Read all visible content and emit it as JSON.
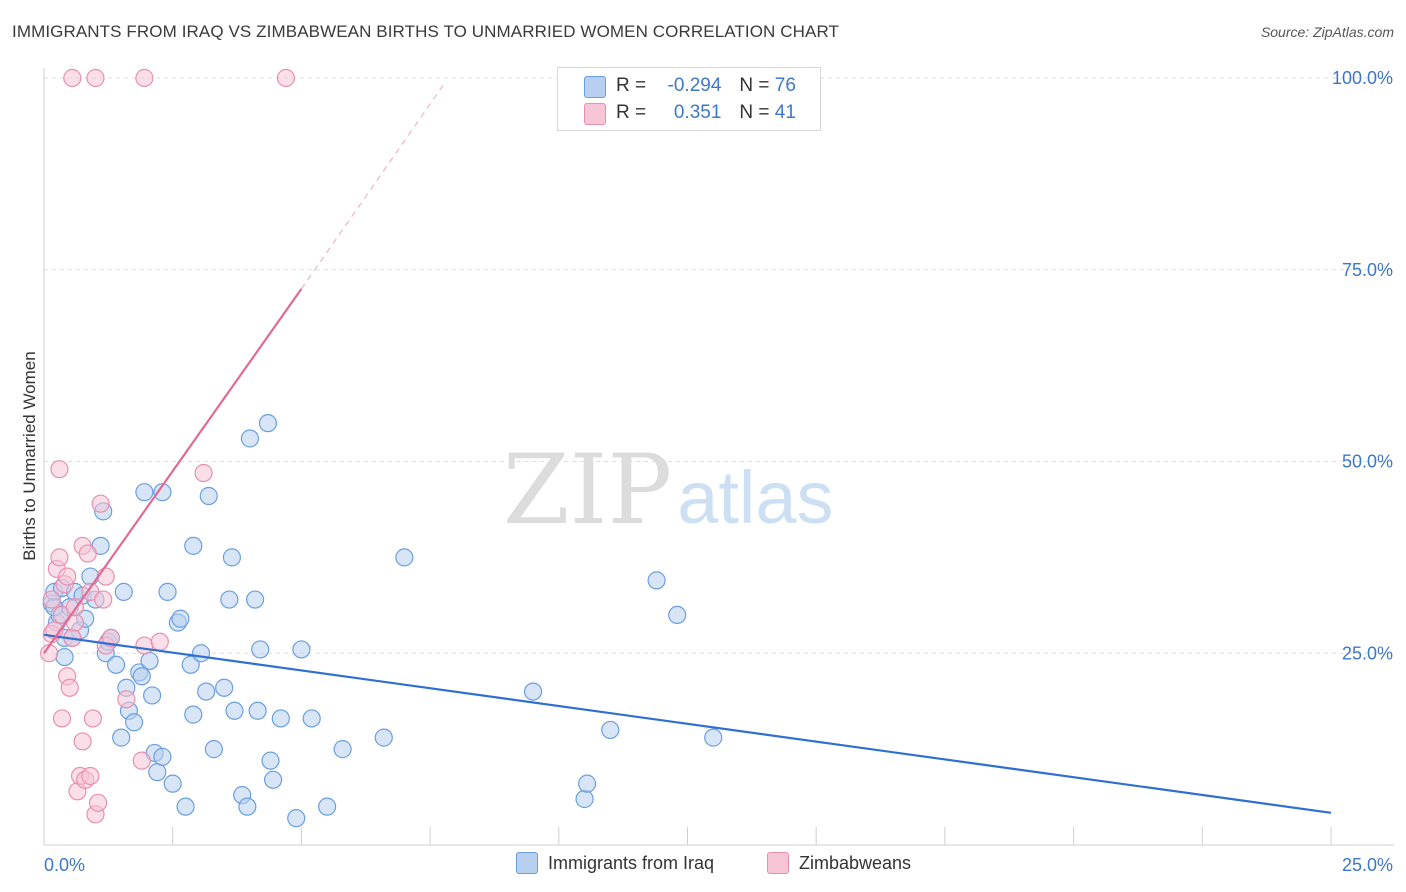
{
  "title": "IMMIGRANTS FROM IRAQ VS ZIMBABWEAN BIRTHS TO UNMARRIED WOMEN CORRELATION CHART",
  "source": "Source: ZipAtlas.com",
  "watermark": {
    "zip": "ZIP",
    "atlas": "atlas"
  },
  "legend": {
    "r_label": "R =",
    "n_label": "N =",
    "series1": {
      "r": "-0.294",
      "n": "76"
    },
    "series2": {
      "r": "0.351",
      "n": "41"
    }
  },
  "chart_data": {
    "type": "scatter",
    "title": "IMMIGRANTS FROM IRAQ VS ZIMBABWEAN BIRTHS TO UNMARRIED WOMEN CORRELATION CHART",
    "xlabel": "",
    "ylabel": "Births to Unmarried Women",
    "xlim": [
      0,
      25
    ],
    "ylim": [
      0,
      100
    ],
    "x_ticks": [
      "0.0%",
      "25.0%"
    ],
    "y_ticks": [
      {
        "value": 25,
        "label": "25.0%"
      },
      {
        "value": 50,
        "label": "50.0%"
      },
      {
        "value": 75,
        "label": "75.0%"
      },
      {
        "value": 100,
        "label": "100.0%"
      }
    ],
    "grid": true,
    "series": [
      {
        "name": "Immigrants from Iraq",
        "color": "#6a9fde",
        "fill": "#b8d0f0",
        "trend": {
          "x": [
            0,
            25
          ],
          "y": [
            27.4,
            4.2
          ],
          "color": "#2f6fd0"
        },
        "points": [
          [
            0.15,
            31.5
          ],
          [
            0.2,
            33
          ],
          [
            0.25,
            29
          ],
          [
            0.3,
            30
          ],
          [
            0.35,
            33.5
          ],
          [
            0.4,
            24.5
          ],
          [
            0.4,
            27
          ],
          [
            0.5,
            31
          ],
          [
            0.6,
            33
          ],
          [
            0.7,
            28
          ],
          [
            0.75,
            32.5
          ],
          [
            0.8,
            29.5
          ],
          [
            0.9,
            35
          ],
          [
            1.0,
            32
          ],
          [
            1.1,
            39
          ],
          [
            1.2,
            25
          ],
          [
            1.25,
            26.5
          ],
          [
            1.3,
            27
          ],
          [
            1.4,
            23.5
          ],
          [
            1.5,
            14
          ],
          [
            1.55,
            33
          ],
          [
            1.6,
            20.5
          ],
          [
            1.65,
            17.5
          ],
          [
            1.75,
            16
          ],
          [
            1.85,
            22.5
          ],
          [
            1.95,
            46
          ],
          [
            2.05,
            24
          ],
          [
            2.1,
            19.5
          ],
          [
            2.15,
            12
          ],
          [
            2.2,
            9.5
          ],
          [
            2.3,
            11.5
          ],
          [
            2.4,
            33
          ],
          [
            2.5,
            8
          ],
          [
            2.6,
            29
          ],
          [
            2.65,
            29.5
          ],
          [
            2.75,
            5
          ],
          [
            2.85,
            23.5
          ],
          [
            2.9,
            17
          ],
          [
            3.05,
            25
          ],
          [
            3.15,
            20
          ],
          [
            3.2,
            45.5
          ],
          [
            3.3,
            12.5
          ],
          [
            3.5,
            20.5
          ],
          [
            3.6,
            32
          ],
          [
            3.65,
            37.5
          ],
          [
            3.7,
            17.5
          ],
          [
            3.85,
            6.5
          ],
          [
            3.95,
            5
          ],
          [
            4.0,
            53
          ],
          [
            4.1,
            32
          ],
          [
            4.15,
            17.5
          ],
          [
            4.2,
            25.5
          ],
          [
            4.35,
            55
          ],
          [
            4.4,
            11
          ],
          [
            4.45,
            8.5
          ],
          [
            4.6,
            16.5
          ],
          [
            4.9,
            3.5
          ],
          [
            5.0,
            25.5
          ],
          [
            5.2,
            16.5
          ],
          [
            5.5,
            5
          ],
          [
            5.8,
            12.5
          ],
          [
            6.6,
            14
          ],
          [
            7.0,
            37.5
          ],
          [
            9.5,
            20
          ],
          [
            10.5,
            6
          ],
          [
            10.55,
            8
          ],
          [
            11.0,
            15
          ],
          [
            11.9,
            34.5
          ],
          [
            12.3,
            30
          ],
          [
            13.0,
            14
          ],
          [
            1.15,
            43.5
          ],
          [
            2.9,
            39
          ],
          [
            0.55,
            27
          ],
          [
            0.2,
            31
          ],
          [
            1.9,
            22
          ],
          [
            2.3,
            46
          ]
        ]
      },
      {
        "name": "Zimbabweans",
        "color": "#e88fb0",
        "fill": "#f6c5d6",
        "trend": {
          "x": [
            0,
            5.0
          ],
          "y": [
            25,
            72.5
          ],
          "ext_x": [
            5.0,
            7.8
          ],
          "ext_y": [
            72.5,
            99.5
          ],
          "color": "#e06a95"
        },
        "points": [
          [
            0.1,
            25
          ],
          [
            0.15,
            27.5
          ],
          [
            0.2,
            28
          ],
          [
            0.25,
            36
          ],
          [
            0.3,
            37.5
          ],
          [
            0.35,
            16.5
          ],
          [
            0.4,
            34
          ],
          [
            0.45,
            22
          ],
          [
            0.5,
            20.5
          ],
          [
            0.55,
            27
          ],
          [
            0.6,
            29
          ],
          [
            0.65,
            7
          ],
          [
            0.7,
            9
          ],
          [
            0.75,
            39
          ],
          [
            0.8,
            8.5
          ],
          [
            0.85,
            38
          ],
          [
            0.9,
            33
          ],
          [
            1.0,
            4
          ],
          [
            1.05,
            5.5
          ],
          [
            1.1,
            44.5
          ],
          [
            1.15,
            32
          ],
          [
            1.2,
            26
          ],
          [
            1.3,
            27
          ],
          [
            0.55,
            100
          ],
          [
            1.0,
            100
          ],
          [
            1.95,
            100
          ],
          [
            4.7,
            100
          ],
          [
            3.1,
            48.5
          ],
          [
            0.3,
            49
          ],
          [
            1.9,
            11
          ],
          [
            1.95,
            26
          ],
          [
            2.25,
            26.5
          ],
          [
            0.95,
            16.5
          ],
          [
            0.75,
            13.5
          ],
          [
            1.6,
            19
          ],
          [
            0.45,
            35
          ],
          [
            0.35,
            30
          ],
          [
            0.9,
            9
          ],
          [
            0.6,
            31
          ],
          [
            0.15,
            32
          ],
          [
            1.2,
            35
          ]
        ]
      }
    ]
  },
  "bottom_legend": [
    {
      "label": "Immigrants from Iraq"
    },
    {
      "label": "Zimbabweans"
    }
  ]
}
